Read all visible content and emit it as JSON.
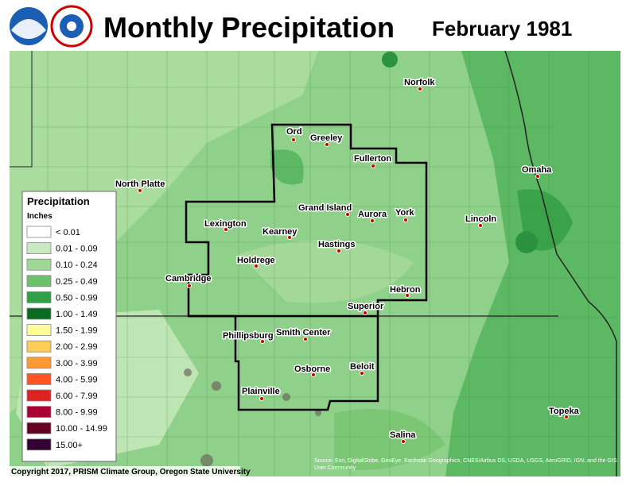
{
  "header": {
    "title": "Monthly Precipitation",
    "date": "February 1981"
  },
  "cities": [
    "Norfolk",
    "Ord",
    "Greeley",
    "Fullerton",
    "Omaha",
    "North Platte",
    "Grand Island",
    "Aurora",
    "York",
    "Lincoln",
    "Lexington",
    "Kearney",
    "Hastings",
    "Holdrege",
    "Cambridge",
    "Hebron",
    "Superior",
    "Phillipsburg",
    "Smith Center",
    "Osborne",
    "Beloit",
    "Plainville",
    "Topeka",
    "Salina"
  ],
  "legend": {
    "title": "Precipitation",
    "subtitle": "Inches",
    "items": [
      {
        "label": "< 0.01",
        "color": "#ffffff"
      },
      {
        "label": "0.01 - 0.09",
        "color": "#c8eac0"
      },
      {
        "label": "0.10 - 0.24",
        "color": "#9fd894"
      },
      {
        "label": "0.25 - 0.49",
        "color": "#6cc26a"
      },
      {
        "label": "0.50 - 0.99",
        "color": "#2fa048"
      },
      {
        "label": "1.00 - 1.49",
        "color": "#0a6b20"
      },
      {
        "label": "1.50 - 1.99",
        "color": "#ffff99"
      },
      {
        "label": "2.00 - 2.99",
        "color": "#ffcc55"
      },
      {
        "label": "3.00 - 3.99",
        "color": "#ff9933"
      },
      {
        "label": "4.00 - 5.99",
        "color": "#ff5522"
      },
      {
        "label": "6.00 - 7.99",
        "color": "#dd2222"
      },
      {
        "label": "8.00 - 9.99",
        "color": "#aa0033"
      },
      {
        "label": "10.00 - 14.99",
        "color": "#660022"
      },
      {
        "label": "15.00+",
        "color": "#330033"
      }
    ]
  },
  "footer": {
    "copyright": "Copyright 2017, PRISM Climate Group, Oregon State University",
    "source": "Source: Esri, DigitalGlobe, GeoEye, Earthstar Geographics, CNES/Airbus DS, USDA, USGS, AeroGRID, IGN, and the GIS User Community"
  }
}
